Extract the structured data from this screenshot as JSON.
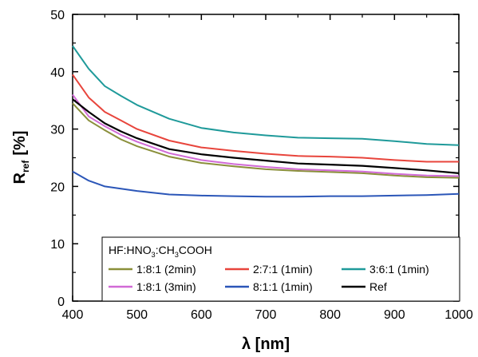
{
  "chart_data": {
    "type": "line",
    "title": "",
    "xlabel": "λ [nm]",
    "ylabel_main": "R",
    "ylabel_sub": "ref",
    "ylabel_unit": "[%]",
    "xlim": [
      400,
      1000
    ],
    "ylim": [
      0,
      50
    ],
    "x_ticks": [
      400,
      500,
      600,
      700,
      800,
      900,
      1000
    ],
    "y_ticks": [
      0,
      10,
      20,
      30,
      40,
      50
    ],
    "grid": false,
    "legend": {
      "placement": "bottom-center",
      "title_parts": [
        "HF:HNO",
        "3",
        ":CH",
        "3",
        "COOH"
      ]
    },
    "series": [
      {
        "name": "1:8:1 (2min)",
        "color": "#8a8f3a",
        "x": [
          400,
          425,
          450,
          475,
          500,
          550,
          600,
          650,
          700,
          750,
          800,
          850,
          900,
          950,
          1000
        ],
        "y": [
          34.5,
          31.5,
          29.8,
          28.2,
          27.0,
          25.2,
          24.1,
          23.5,
          23.0,
          22.7,
          22.5,
          22.3,
          21.9,
          21.6,
          21.5
        ]
      },
      {
        "name": "2:7:1 (1min)",
        "color": "#e8453c",
        "x": [
          400,
          425,
          450,
          475,
          500,
          550,
          600,
          650,
          700,
          750,
          800,
          850,
          900,
          950,
          1000
        ],
        "y": [
          39.5,
          35.5,
          33.0,
          31.5,
          30.0,
          28.0,
          26.8,
          26.2,
          25.7,
          25.3,
          25.2,
          25.0,
          24.6,
          24.3,
          24.3
        ]
      },
      {
        "name": "3:6:1 (1min)",
        "color": "#1f9a9a",
        "x": [
          400,
          425,
          450,
          475,
          500,
          550,
          600,
          650,
          700,
          750,
          800,
          850,
          900,
          950,
          1000
        ],
        "y": [
          44.5,
          40.5,
          37.5,
          35.8,
          34.2,
          31.8,
          30.2,
          29.4,
          28.9,
          28.5,
          28.4,
          28.3,
          27.9,
          27.4,
          27.2
        ]
      },
      {
        "name": "1:8:1 (3min)",
        "color": "#d16ad6",
        "x": [
          400,
          425,
          450,
          475,
          500,
          550,
          600,
          650,
          700,
          750,
          800,
          850,
          900,
          950,
          1000
        ],
        "y": [
          36.0,
          32.2,
          30.5,
          29.0,
          27.8,
          25.8,
          24.6,
          23.9,
          23.4,
          23.0,
          22.8,
          22.6,
          22.2,
          21.9,
          21.8
        ]
      },
      {
        "name": "8:1:1 (1min)",
        "color": "#2b56b8",
        "x": [
          400,
          425,
          450,
          475,
          500,
          550,
          600,
          650,
          700,
          750,
          800,
          850,
          900,
          950,
          1000
        ],
        "y": [
          22.6,
          21.0,
          20.0,
          19.6,
          19.2,
          18.6,
          18.4,
          18.3,
          18.2,
          18.2,
          18.3,
          18.3,
          18.4,
          18.5,
          18.7
        ]
      },
      {
        "name": "Ref",
        "color": "#000000",
        "x": [
          400,
          425,
          450,
          475,
          500,
          550,
          600,
          650,
          700,
          750,
          800,
          850,
          900,
          950,
          1000
        ],
        "y": [
          35.2,
          33.0,
          31.0,
          29.6,
          28.4,
          26.5,
          25.6,
          25.0,
          24.5,
          24.0,
          23.8,
          23.6,
          23.2,
          22.8,
          22.3
        ]
      }
    ]
  }
}
